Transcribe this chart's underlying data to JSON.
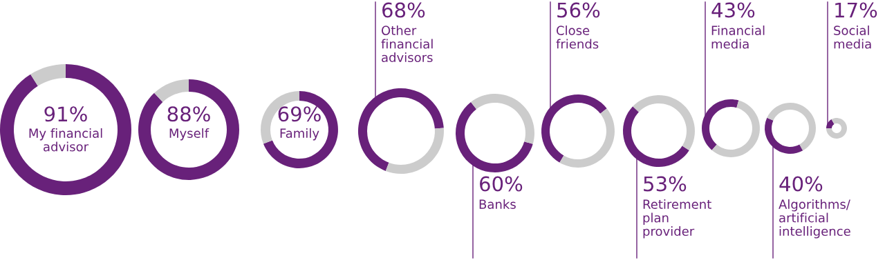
{
  "chart_data": [
    {
      "type": "donut",
      "title": "My financial\nadvisor",
      "categories": [
        null,
        null
      ],
      "values": [
        91,
        9
      ],
      "colors": [
        "#68217a",
        "#cccccc"
      ],
      "value_labels": [
        "91%",
        null
      ]
    },
    {
      "type": "donut",
      "title": "Myself",
      "categories": [
        null,
        null
      ],
      "values": [
        88,
        12
      ],
      "colors": [
        "#68217a",
        "#cccccc"
      ],
      "value_labels": [
        "88%",
        null
      ]
    },
    {
      "type": "donut",
      "title": "Family",
      "categories": [
        null,
        null
      ],
      "values": [
        69,
        31
      ],
      "colors": [
        "#68217a",
        "#cccccc"
      ],
      "value_labels": [
        "69%",
        null
      ]
    },
    {
      "type": "donut",
      "title": "Other\nfinancial\nadvisors",
      "categories": [
        null,
        null
      ],
      "values": [
        68,
        32
      ],
      "colors": [
        "#68217a",
        "#cccccc"
      ],
      "value_labels": [
        "68%",
        null
      ]
    },
    {
      "type": "donut",
      "title": "Banks",
      "categories": [
        null,
        null
      ],
      "values": [
        60,
        40
      ],
      "colors": [
        "#68217a",
        "#cccccc"
      ],
      "value_labels": [
        "60%",
        null
      ]
    },
    {
      "type": "donut",
      "title": "Close\nfriends",
      "categories": [
        null,
        null
      ],
      "values": [
        56,
        44
      ],
      "colors": [
        "#68217a",
        "#cccccc"
      ],
      "value_labels": [
        "56%",
        null
      ]
    },
    {
      "type": "donut",
      "title": "Retirement\nplan\nprovider",
      "categories": [
        null,
        null
      ],
      "values": [
        53,
        47
      ],
      "colors": [
        "#68217a",
        "#cccccc"
      ],
      "value_labels": [
        "53%",
        null
      ]
    },
    {
      "type": "donut",
      "title": "Financial\nmedia",
      "categories": [
        null,
        null
      ],
      "values": [
        43,
        57
      ],
      "colors": [
        "#68217a",
        "#cccccc"
      ],
      "value_labels": [
        "43%",
        null
      ]
    },
    {
      "type": "donut",
      "title": "Algorithms/\nartificial\nintelligence",
      "categories": [
        null,
        null
      ],
      "values": [
        40,
        60
      ],
      "colors": [
        "#68217a",
        "#cccccc"
      ],
      "value_labels": [
        "40%",
        null
      ]
    },
    {
      "type": "donut",
      "title": "Social\nmedia",
      "categories": [
        null,
        null
      ],
      "values": [
        17,
        83
      ],
      "colors": [
        "#68217a",
        "#cccccc"
      ],
      "value_labels": [
        "17%",
        null
      ]
    }
  ]
}
